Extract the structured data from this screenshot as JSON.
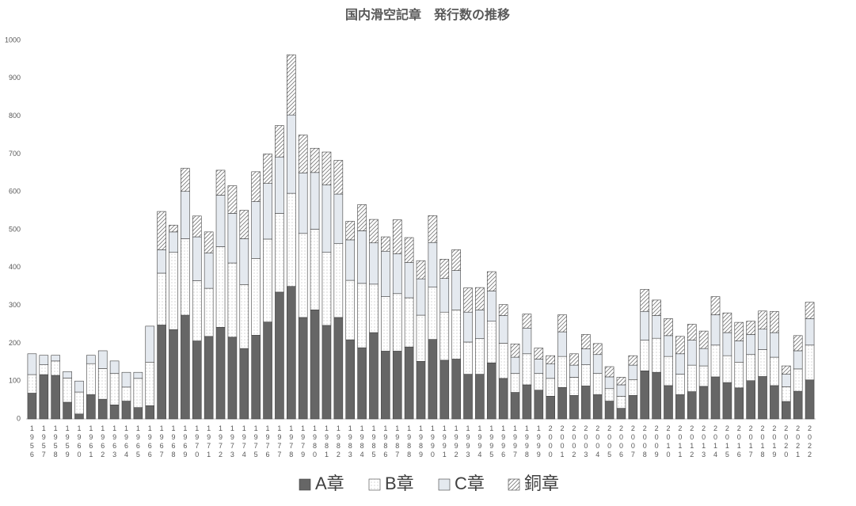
{
  "chart_data": {
    "type": "stacked_bar",
    "title": "国内滑空記章　発行数の推移",
    "categories": [
      "1956",
      "1957",
      "1958",
      "1959",
      "1960",
      "1961",
      "1962",
      "1963",
      "1964",
      "1965",
      "1966",
      "1967",
      "1968",
      "1969",
      "1970",
      "1971",
      "1972",
      "1973",
      "1974",
      "1975",
      "1976",
      "1977",
      "1978",
      "1979",
      "1980",
      "1981",
      "1982",
      "1983",
      "1984",
      "1985",
      "1986",
      "1987",
      "1988",
      "1989",
      "1990",
      "1991",
      "1992",
      "1993",
      "1994",
      "1995",
      "1996",
      "1997",
      "1998",
      "1999",
      "2000",
      "2001",
      "2002",
      "2003",
      "2004",
      "2005",
      "2006",
      "2007",
      "2008",
      "2009",
      "2010",
      "2011",
      "2012",
      "2013",
      "2014",
      "2015",
      "2016",
      "2017",
      "2018",
      "2019",
      "2020",
      "2021",
      "2022"
    ],
    "series": [
      {
        "name": "A章",
        "color": "#666666",
        "values": [
          68,
          117,
          115,
          44,
          13,
          64,
          52,
          37,
          47,
          30,
          35,
          248,
          236,
          274,
          206,
          218,
          242,
          216,
          186,
          221,
          256,
          335,
          350,
          268,
          288,
          247,
          268,
          209,
          188,
          228,
          179,
          179,
          190,
          152,
          210,
          155,
          158,
          118,
          118,
          148,
          107,
          70,
          90,
          76,
          60,
          83,
          62,
          87,
          64,
          47,
          28,
          62,
          127,
          123,
          88,
          64,
          72,
          86,
          111,
          96,
          82,
          101,
          112,
          88,
          46,
          73,
          103
        ]
      },
      {
        "name": "B章",
        "color": "#ffffff",
        "values": [
          49,
          26,
          38,
          64,
          58,
          82,
          81,
          83,
          37,
          77,
          115,
          137,
          204,
          202,
          159,
          127,
          213,
          196,
          169,
          203,
          219,
          208,
          246,
          222,
          213,
          193,
          195,
          157,
          170,
          128,
          144,
          152,
          130,
          122,
          138,
          127,
          130,
          85,
          94,
          110,
          93,
          50,
          82,
          44,
          47,
          82,
          48,
          56,
          56,
          33,
          32,
          42,
          81,
          90,
          77,
          54,
          70,
          54,
          84,
          71,
          68,
          69,
          71,
          75,
          39,
          59,
          92
        ]
      },
      {
        "name": "C章",
        "color": "#e4e9ef",
        "values": [
          55,
          25,
          15,
          17,
          29,
          22,
          47,
          33,
          39,
          16,
          95,
          62,
          54,
          125,
          116,
          93,
          136,
          131,
          121,
          150,
          147,
          149,
          207,
          160,
          150,
          178,
          131,
          107,
          139,
          109,
          120,
          105,
          93,
          96,
          118,
          89,
          104,
          79,
          76,
          80,
          73,
          43,
          68,
          38,
          38,
          65,
          32,
          42,
          50,
          31,
          30,
          38,
          76,
          60,
          55,
          54,
          66,
          46,
          80,
          61,
          56,
          53,
          54,
          65,
          33,
          48,
          70
        ]
      },
      {
        "name": "銅章",
        "color": "#ffffff",
        "values": [
          0,
          0,
          0,
          0,
          0,
          0,
          0,
          0,
          0,
          0,
          0,
          101,
          18,
          61,
          55,
          56,
          66,
          73,
          75,
          79,
          78,
          83,
          159,
          100,
          64,
          87,
          89,
          49,
          69,
          62,
          38,
          90,
          66,
          48,
          71,
          51,
          55,
          64,
          59,
          51,
          29,
          35,
          37,
          29,
          22,
          45,
          30,
          38,
          29,
          27,
          20,
          25,
          58,
          41,
          45,
          46,
          42,
          46,
          48,
          52,
          49,
          35,
          48,
          56,
          22,
          40,
          43
        ]
      }
    ],
    "ylim": [
      0,
      1000
    ],
    "yticks": [
      0,
      100,
      200,
      300,
      400,
      500,
      600,
      700,
      800,
      900,
      1000
    ],
    "grid": false
  }
}
